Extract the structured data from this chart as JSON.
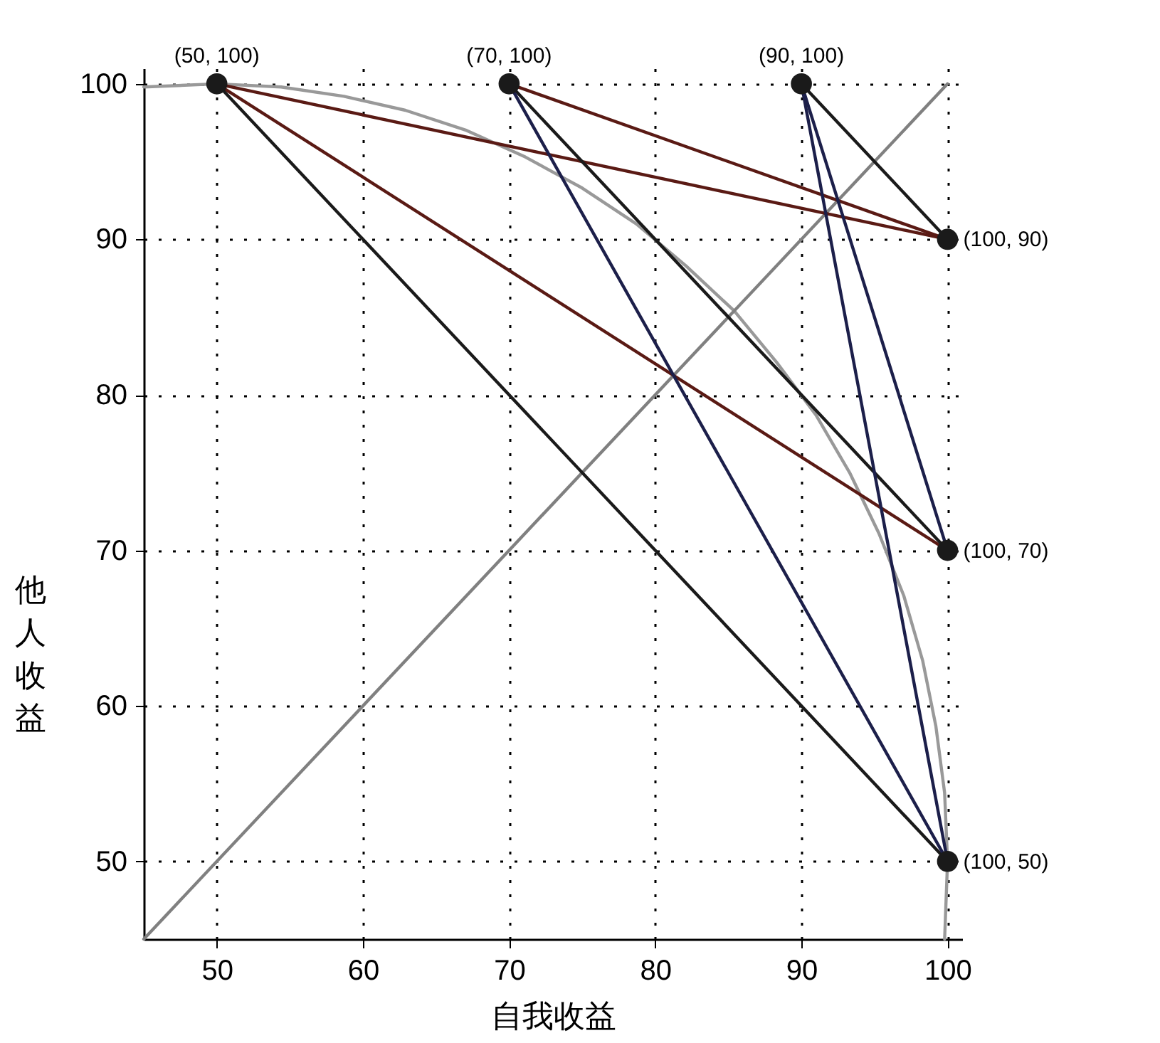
{
  "chart_data": {
    "type": "line",
    "xlabel": "自我收益",
    "ylabel": "他人收益",
    "xlim": [
      45,
      101
    ],
    "ylim": [
      45,
      101
    ],
    "xticks": [
      50,
      60,
      70,
      80,
      90,
      100
    ],
    "yticks": [
      50,
      60,
      70,
      80,
      90,
      100
    ],
    "grid": true,
    "legend": false,
    "series": [
      {
        "type": "line",
        "color": "#999999",
        "x": [
          99.8,
          100,
          99.8,
          99.2,
          98.3,
          97.0,
          95.3,
          93.3,
          91.0,
          88.3,
          85.4,
          82.1,
          78.7,
          75.0,
          71.1,
          67.1,
          62.9,
          58.7,
          54.4,
          50,
          45
        ],
        "values": [
          45,
          50,
          54.4,
          58.7,
          62.9,
          67.1,
          71.1,
          75.0,
          78.7,
          82.1,
          85.4,
          88.3,
          91.0,
          93.3,
          95.3,
          97.0,
          98.3,
          99.2,
          99.8,
          100,
          99.8
        ]
      },
      {
        "type": "line",
        "color": "#808080",
        "x": [
          45,
          100
        ],
        "values": [
          45,
          100
        ]
      },
      {
        "type": "line",
        "color": "#5a1a14",
        "x": [
          50,
          100
        ],
        "values": [
          100,
          90
        ]
      },
      {
        "type": "line",
        "color": "#5a1a14",
        "x": [
          50,
          100
        ],
        "values": [
          100,
          70
        ]
      },
      {
        "type": "line",
        "color": "#5a1a14",
        "x": [
          70,
          100
        ],
        "values": [
          100,
          90
        ]
      },
      {
        "type": "line",
        "color": "#1a1a1a",
        "x": [
          50,
          100
        ],
        "values": [
          100,
          50
        ]
      },
      {
        "type": "line",
        "color": "#1a1a1a",
        "x": [
          70,
          100
        ],
        "values": [
          100,
          70
        ]
      },
      {
        "type": "line",
        "color": "#1a1a1a",
        "x": [
          90,
          100
        ],
        "values": [
          100,
          90
        ]
      },
      {
        "type": "line",
        "color": "#1c1f4a",
        "x": [
          70,
          100
        ],
        "values": [
          100,
          50
        ]
      },
      {
        "type": "line",
        "color": "#1c1f4a",
        "x": [
          90,
          100
        ],
        "values": [
          100,
          70
        ]
      },
      {
        "type": "line",
        "color": "#1c1f4a",
        "x": [
          90,
          100
        ],
        "values": [
          100,
          50
        ]
      },
      {
        "type": "scatter",
        "marker": "circle",
        "color": "#1a1a1a",
        "x": [
          50,
          70,
          90,
          100,
          100,
          100
        ],
        "values": [
          100,
          100,
          100,
          90,
          70,
          50
        ]
      }
    ],
    "annotations": [
      {
        "text": "(50, 100)",
        "x": 50,
        "y": 100
      },
      {
        "text": "(70, 100)",
        "x": 70,
        "y": 100
      },
      {
        "text": "(90, 100)",
        "x": 90,
        "y": 100
      },
      {
        "text": "(100, 90)",
        "x": 100,
        "y": 90
      },
      {
        "text": "(100, 70)",
        "x": 100,
        "y": 70
      },
      {
        "text": "(100, 50)",
        "x": 100,
        "y": 50
      }
    ]
  }
}
